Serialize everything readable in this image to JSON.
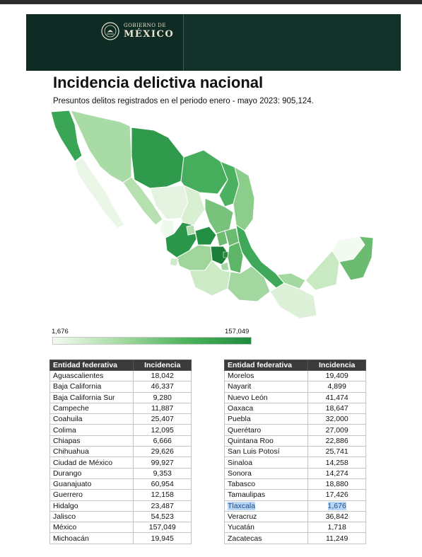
{
  "header": {
    "gov_top": "GOBIERNO DE",
    "gov_main": "MÉXICO"
  },
  "title": "Incidencia delictiva nacional",
  "subtitle": "Presuntos delitos registrados en el periodo enero - mayo 2023: 905,124.",
  "legend": {
    "min": "1,676",
    "max": "157,049"
  },
  "colors": {
    "header_bg": "#0f2c24",
    "scale_low": "#f3fbf0",
    "scale_high": "#1e8b3c",
    "highlight": "#b8d6f5"
  },
  "table_headers": {
    "state": "Entidad federativa",
    "value": "Incidencia"
  },
  "table_left": [
    {
      "state": "Aguascalientes",
      "value": "18,042"
    },
    {
      "state": "Baja California",
      "value": "46,337"
    },
    {
      "state": "Baja California Sur",
      "value": "9,280"
    },
    {
      "state": "Campeche",
      "value": "11,887"
    },
    {
      "state": "Coahuila",
      "value": "25,407"
    },
    {
      "state": "Colima",
      "value": "12,095"
    },
    {
      "state": "Chiapas",
      "value": "6,666"
    },
    {
      "state": "Chihuahua",
      "value": "29,626"
    },
    {
      "state": "Ciudad de México",
      "value": "99,927"
    },
    {
      "state": "Durango",
      "value": "9,353"
    },
    {
      "state": "Guanajuato",
      "value": "60,954"
    },
    {
      "state": "Guerrero",
      "value": "12,158"
    },
    {
      "state": "Hidalgo",
      "value": "23,487"
    },
    {
      "state": "Jalisco",
      "value": "54,523"
    },
    {
      "state": "México",
      "value": "157,049"
    },
    {
      "state": "Michoacán",
      "value": "19,945"
    }
  ],
  "table_right": [
    {
      "state": "Morelos",
      "value": "19,409"
    },
    {
      "state": "Nayarit",
      "value": "4,899"
    },
    {
      "state": "Nuevo León",
      "value": "41,474"
    },
    {
      "state": "Oaxaca",
      "value": "18,647"
    },
    {
      "state": "Puebla",
      "value": "32,000"
    },
    {
      "state": "Querétaro",
      "value": "27,009"
    },
    {
      "state": "Quintana Roo",
      "value": "22,886"
    },
    {
      "state": "San Luis Potosí",
      "value": "25,741"
    },
    {
      "state": "Sinaloa",
      "value": "14,258"
    },
    {
      "state": "Sonora",
      "value": "14,274"
    },
    {
      "state": "Tabasco",
      "value": "18,880"
    },
    {
      "state": "Tamaulipas",
      "value": "17,426"
    },
    {
      "state": "Tlaxcala",
      "value": "1,676",
      "highlight": true
    },
    {
      "state": "Veracruz",
      "value": "36,842"
    },
    {
      "state": "Yucatán",
      "value": "1,718"
    },
    {
      "state": "Zacatecas",
      "value": "11,249"
    }
  ]
}
